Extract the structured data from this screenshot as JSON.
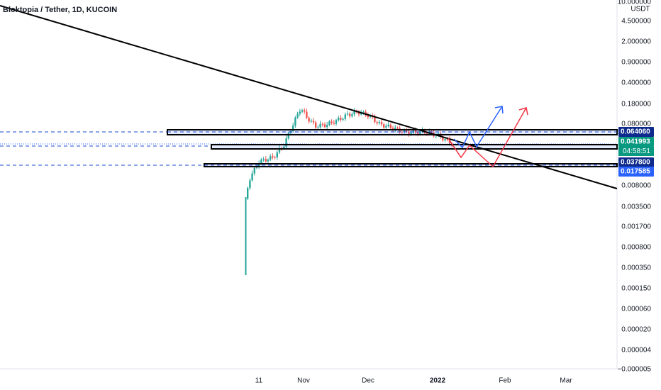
{
  "header": {
    "title": "Bloktopia / Tether, 1D, KUCOIN"
  },
  "price_axis": {
    "unit": "USDT",
    "labels": [
      "10.000000",
      "4.500000",
      "2.000000",
      "0.900000",
      "0.400000",
      "0.180000",
      "0.080000",
      "0.008000",
      "0.003500",
      "0.001700",
      "0.000800",
      "0.000350",
      "0.000150",
      "0.000060",
      "0.000020",
      "0.000004",
      "−0.000005"
    ]
  },
  "price_tags": [
    {
      "text": "0.064060"
    },
    {
      "text": "0.041993",
      "countdown": "04:58:51"
    },
    {
      "text": "0.037800"
    },
    {
      "text": "0.017585"
    }
  ],
  "time_axis": {
    "labels": [
      "11",
      "Nov",
      "Dec",
      "2022",
      "Feb",
      "Mar"
    ]
  }
}
